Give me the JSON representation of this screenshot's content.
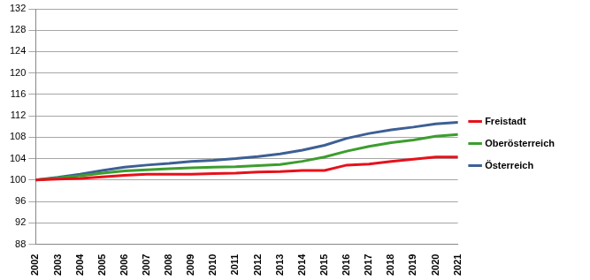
{
  "chart_data": {
    "type": "line",
    "categories": [
      "2002",
      "2003",
      "2004",
      "2005",
      "2006",
      "2007",
      "2008",
      "2009",
      "2010",
      "2011",
      "2012",
      "2013",
      "2014",
      "2015",
      "2016",
      "2017",
      "2018",
      "2019",
      "2020",
      "2021"
    ],
    "series": [
      {
        "name": "Freistadt",
        "color": "#e8101a",
        "values": [
          100,
          100.2,
          100.3,
          100.6,
          100.9,
          101.1,
          101.1,
          101.1,
          101.2,
          101.3,
          101.5,
          101.6,
          101.8,
          101.8,
          102.8,
          103.0,
          103.5,
          103.9,
          104.3,
          104.3
        ]
      },
      {
        "name": "Oberösterreich",
        "color": "#3c9d2e",
        "values": [
          100,
          100.4,
          100.8,
          101.3,
          101.7,
          101.9,
          102.1,
          102.3,
          102.4,
          102.5,
          102.7,
          102.9,
          103.5,
          104.3,
          105.4,
          106.3,
          107.0,
          107.5,
          108.2,
          108.5
        ]
      },
      {
        "name": "Österreich",
        "color": "#3d5f94",
        "values": [
          100,
          100.5,
          101.1,
          101.8,
          102.4,
          102.8,
          103.1,
          103.5,
          103.7,
          104.0,
          104.4,
          104.9,
          105.6,
          106.5,
          107.8,
          108.7,
          109.4,
          109.9,
          110.5,
          110.8
        ]
      }
    ],
    "ylim": [
      88,
      132
    ],
    "yticks": [
      88,
      92,
      96,
      100,
      104,
      108,
      112,
      116,
      120,
      124,
      128,
      132
    ],
    "grid": true,
    "legend": "right"
  }
}
